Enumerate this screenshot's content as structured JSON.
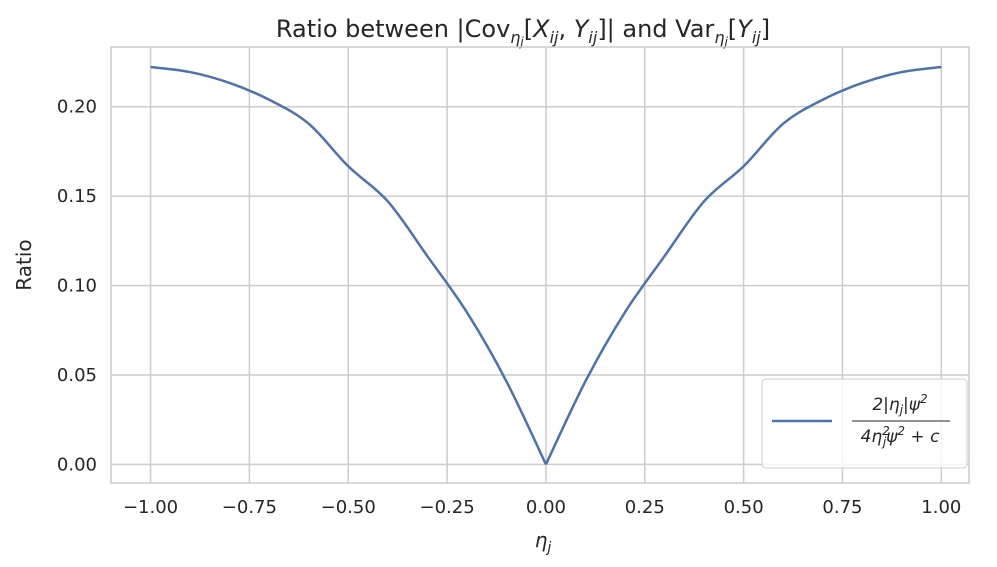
{
  "chart_data": {
    "type": "line",
    "title": {
      "prefix": "Ratio between |Cov",
      "sub1": "η",
      "sub1b": "j",
      "mid1": "[",
      "x_var": "X",
      "x_sub": "ij",
      "comma": ", ",
      "y_var": "Y",
      "y_sub": "ij",
      "mid2": "]| and Var",
      "sub2": "η",
      "sub2b": "j",
      "open": "[",
      "y_var2": "Y",
      "y_sub2": "ij",
      "close": "]"
    },
    "xlabel": {
      "var": "η",
      "sub": "j"
    },
    "ylabel": "Ratio",
    "xlim": [
      -1.1,
      1.07
    ],
    "ylim": [
      -0.0104,
      0.2334
    ],
    "xticks": [
      -1.0,
      -0.75,
      -0.5,
      -0.25,
      0.0,
      0.25,
      0.5,
      0.75,
      1.0
    ],
    "xtick_labels": [
      "−1.00",
      "−0.75",
      "−0.50",
      "−0.25",
      "0.00",
      "0.25",
      "0.50",
      "0.75",
      "1.00"
    ],
    "yticks": [
      0.0,
      0.05,
      0.1,
      0.15,
      0.2
    ],
    "ytick_labels": [
      "0.00",
      "0.05",
      "0.10",
      "0.15",
      "0.20"
    ],
    "grid": true,
    "legend_position": "lower-right",
    "series": [
      {
        "name_parts": {
          "num": "2|η",
          "num_sub": "j",
          "num_rest": "|ψ",
          "num_sup": "2",
          "den": "4η",
          "den_sup": "2",
          "den_sub": "j",
          "den_rest": "ψ",
          "den_sup2": "2",
          "den_tail": " + c"
        },
        "color": "#4c72b0",
        "x": [
          -1.0,
          -0.9,
          -0.8,
          -0.7,
          -0.6,
          -0.5,
          -0.4,
          -0.3,
          -0.2,
          -0.1,
          0.0,
          0.1,
          0.2,
          0.3,
          0.4,
          0.5,
          0.6,
          0.7,
          0.8,
          0.9,
          1.0
        ],
        "y": [
          0.2222,
          0.2194,
          0.2133,
          0.2039,
          0.1905,
          0.1667,
          0.1471,
          0.1165,
          0.0851,
          0.0465,
          0.0,
          0.0465,
          0.0851,
          0.1165,
          0.1471,
          0.1667,
          0.1905,
          0.2039,
          0.2133,
          0.2194,
          0.2222
        ]
      }
    ]
  },
  "colors": {
    "line": "#4c72b0",
    "grid": "#cccccc",
    "axes": "#cccccc",
    "text": "#262626"
  }
}
